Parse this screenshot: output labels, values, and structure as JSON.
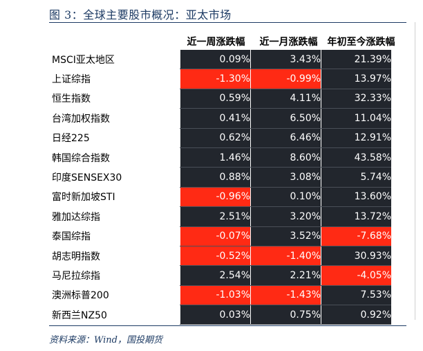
{
  "title": "图 3：全球主要股市概况：亚太市场",
  "headers": [
    "近一周涨跌幅",
    "近一月涨跌幅",
    "年初至今涨跌幅"
  ],
  "rows": [
    {
      "name": "MSCI亚太地区",
      "values": [
        "0.09%",
        "3.43%",
        "21.39%"
      ]
    },
    {
      "name": "上证综指",
      "values": [
        "-1.30%",
        "-0.99%",
        "13.97%"
      ]
    },
    {
      "name": "恒生指数",
      "values": [
        "0.59%",
        "4.11%",
        "32.33%"
      ]
    },
    {
      "name": "台湾加权指数",
      "values": [
        "0.41%",
        "6.50%",
        "11.04%"
      ]
    },
    {
      "name": "日经225",
      "values": [
        "0.62%",
        "6.46%",
        "12.91%"
      ]
    },
    {
      "name": "韩国综合指数",
      "values": [
        "1.46%",
        "8.60%",
        "43.58%"
      ]
    },
    {
      "name": "印度SENSEX30",
      "values": [
        "0.88%",
        "3.08%",
        "5.74%"
      ]
    },
    {
      "name": "富时新加坡STI",
      "values": [
        "-0.96%",
        "0.10%",
        "13.60%"
      ]
    },
    {
      "name": "雅加达综指",
      "values": [
        "2.51%",
        "3.20%",
        "13.72%"
      ]
    },
    {
      "name": "泰国综指",
      "values": [
        "-0.07%",
        "3.52%",
        "-7.68%"
      ]
    },
    {
      "name": "胡志明指数",
      "values": [
        "-0.52%",
        "-1.40%",
        "30.93%"
      ]
    },
    {
      "name": "马尼拉综指",
      "values": [
        "2.54%",
        "2.21%",
        "-4.05%"
      ]
    },
    {
      "name": "澳洲标普200",
      "values": [
        "-1.03%",
        "-1.43%",
        "7.53%"
      ]
    },
    {
      "name": "新西兰NZ50",
      "values": [
        "0.03%",
        "0.75%",
        "0.92%"
      ]
    }
  ],
  "colors": {
    "dark_cell": "#22262d",
    "negative_cell": "#ff2a14"
  },
  "source": "资料来源：Wind，国投期货"
}
